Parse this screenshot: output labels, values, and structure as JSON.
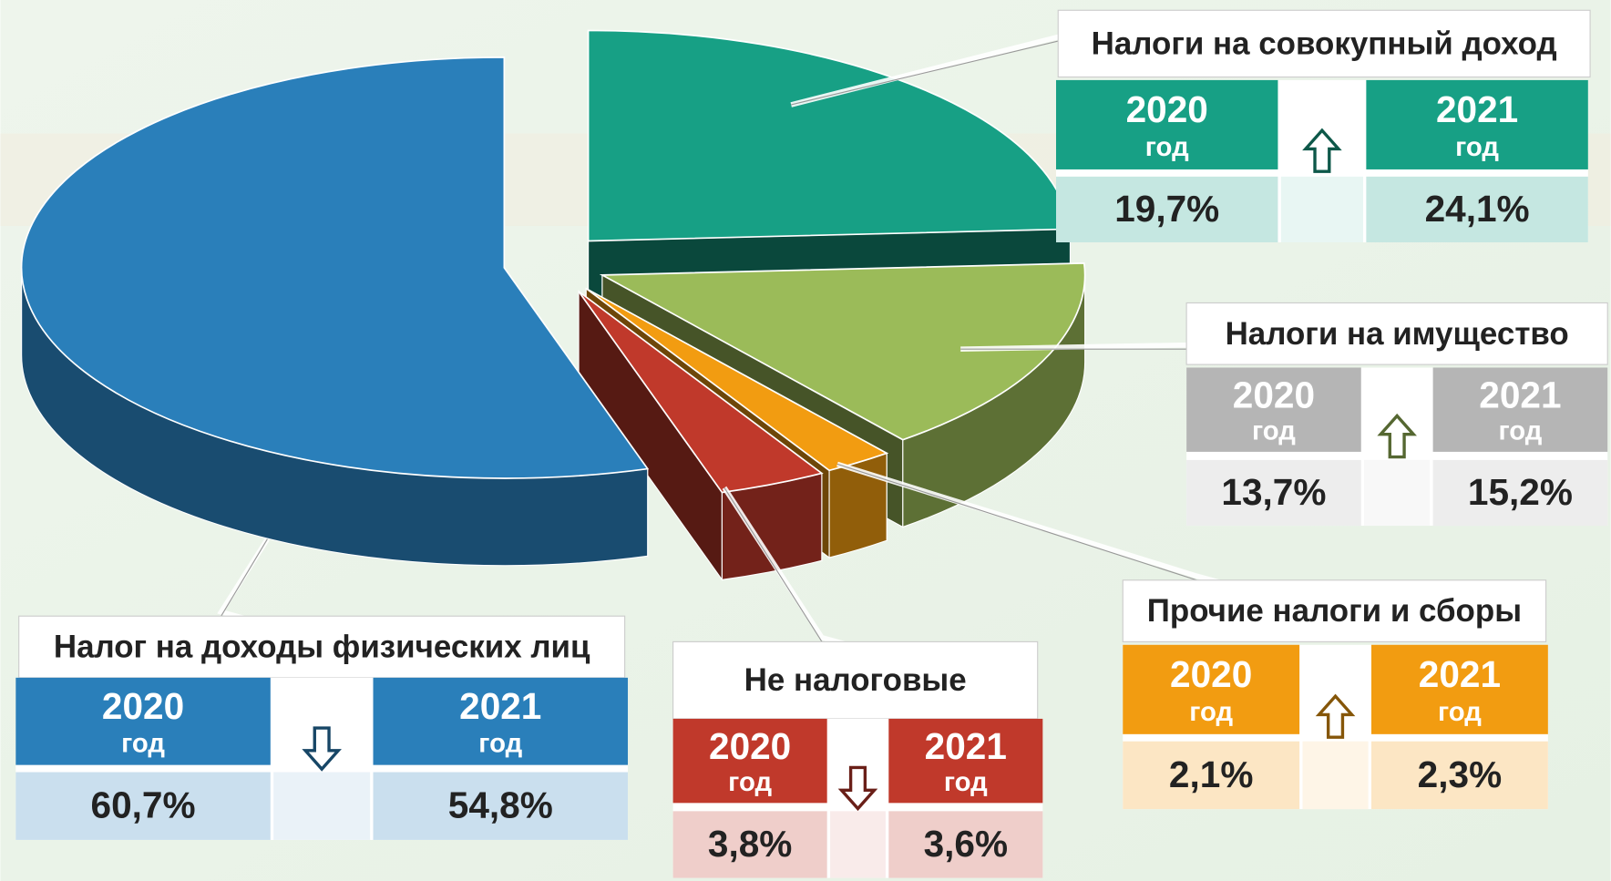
{
  "chart_data": {
    "type": "pie",
    "categories": [
      "Налоги на совокупный доход",
      "Налоги на имущество",
      "Прочие налоги и сборы",
      "Не налоговые",
      "Налог на доходы физических лиц"
    ],
    "colors": [
      "#17a085",
      "#9bbb59",
      "#f29c11",
      "#c0392b",
      "#2a7fba"
    ],
    "table_colors": [
      "#17a085",
      "#b5b5b5",
      "#f29c11",
      "#c0392b",
      "#2a7fba"
    ],
    "period_label": "год",
    "series": [
      {
        "name": "2020",
        "values": [
          19.7,
          13.7,
          2.1,
          3.8,
          60.7
        ],
        "value_labels": [
          "19,7%",
          "13,7%",
          "2,1%",
          "3,8%",
          "60,7%"
        ]
      },
      {
        "name": "2021",
        "values": [
          24.1,
          15.2,
          2.3,
          3.6,
          54.8
        ],
        "value_labels": [
          "24,1%",
          "15,2%",
          "2,3%",
          "3,6%",
          "54,8%"
        ]
      }
    ]
  }
}
